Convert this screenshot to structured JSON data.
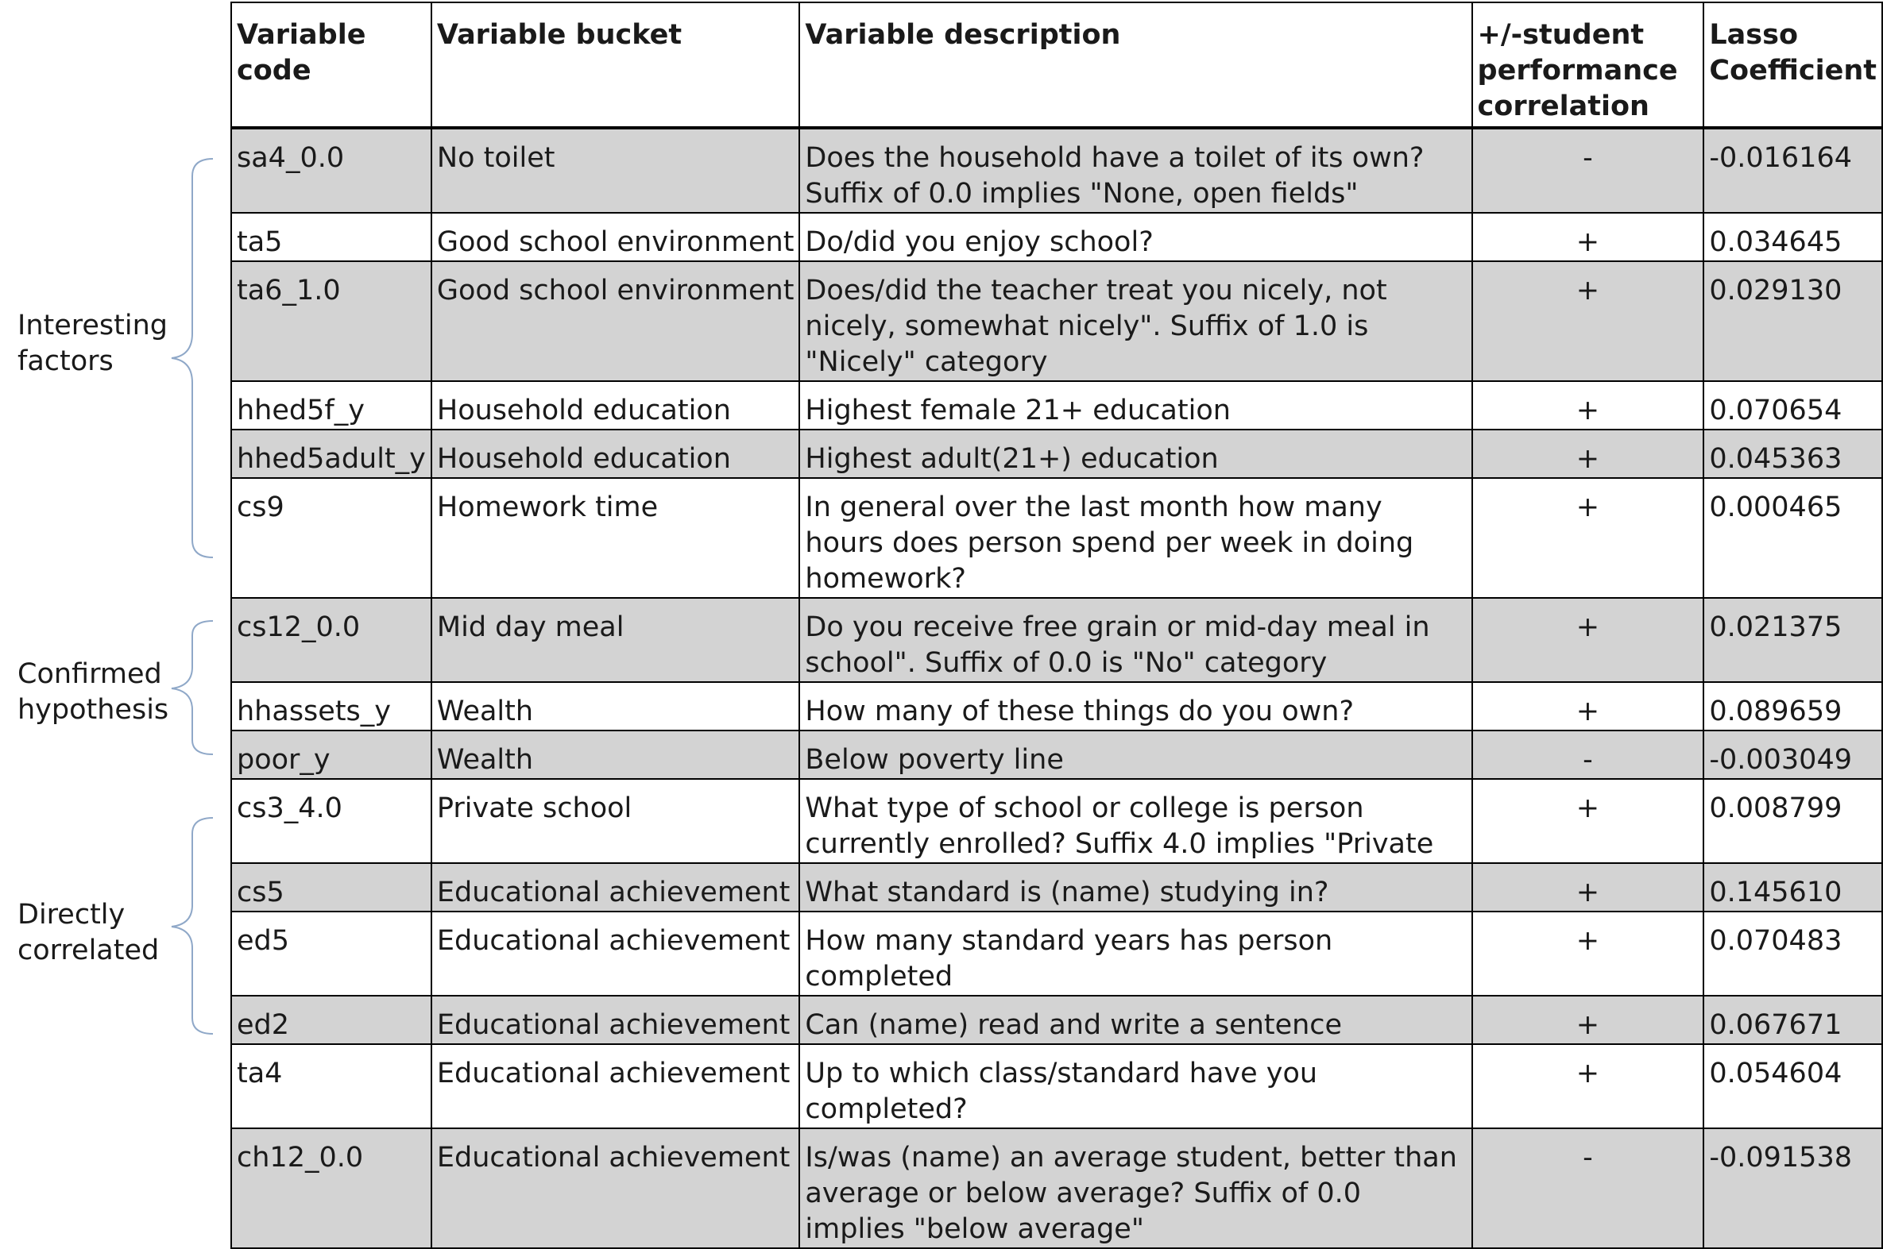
{
  "table": {
    "headers": {
      "code": "Variable code",
      "bucket": "Variable bucket",
      "description": "Variable description",
      "correlation": "+/-student performance correlation",
      "coefficient": "Lasso Coefficient"
    },
    "rows": [
      {
        "code": "sa4_0.0",
        "bucket": "No toilet",
        "description": "Does the household have a toilet of its own? Suffix of 0.0 implies \"None, open fields\"",
        "sign": "-",
        "coef": "-0.016164"
      },
      {
        "code": "ta5",
        "bucket": "Good school environment",
        "description": "Do/did you enjoy school?",
        "sign": "+",
        "coef": "0.034645"
      },
      {
        "code": "ta6_1.0",
        "bucket": "Good school environment",
        "description": "Does/did the teacher treat you nicely, not nicely, somewhat nicely\". Suffix of 1.0 is \"Nicely\" category",
        "sign": "+",
        "coef": "0.029130"
      },
      {
        "code": "hhed5f_y",
        "bucket": "Household education",
        "description": "Highest female 21+ education",
        "sign": "+",
        "coef": "0.070654"
      },
      {
        "code": "hhed5adult_y",
        "bucket": "Household education",
        "description": "Highest adult(21+) education",
        "sign": "+",
        "coef": "0.045363"
      },
      {
        "code": "cs9",
        "bucket": "Homework time",
        "description": "In general over the last month how many hours does person spend per week in doing homework?",
        "sign": "+",
        "coef": "0.000465"
      },
      {
        "code": "cs12_0.0",
        "bucket": "Mid day meal",
        "description": "Do you receive free grain or mid-day meal in school\". Suffix of 0.0 is \"No\" category",
        "sign": "+",
        "coef": "0.021375"
      },
      {
        "code": "hhassets_y",
        "bucket": "Wealth",
        "description": "How many of these things do you own?",
        "sign": "+",
        "coef": "0.089659"
      },
      {
        "code": "poor_y",
        "bucket": "Wealth",
        "description": "Below poverty line",
        "sign": "-",
        "coef": "-0.003049"
      },
      {
        "code": "cs3_4.0",
        "bucket": "Private school",
        "description": "What type of school or college is person currently enrolled? Suffix 4.0 implies \"Private",
        "sign": "+",
        "coef": "0.008799"
      },
      {
        "code": "cs5",
        "bucket": "Educational achievement",
        "description": "What standard is (name) studying in?",
        "sign": "+",
        "coef": "0.145610"
      },
      {
        "code": "ed5",
        "bucket": "Educational achievement",
        "description": "How many standard years has person completed",
        "sign": "+",
        "coef": "0.070483"
      },
      {
        "code": "ed2",
        "bucket": "Educational achievement",
        "description": "Can (name) read and write a sentence",
        "sign": "+",
        "coef": "0.067671"
      },
      {
        "code": "ta4",
        "bucket": "Educational achievement",
        "description": "Up to which class/standard have you completed?",
        "sign": "+",
        "coef": "0.054604"
      },
      {
        "code": "ch12_0.0",
        "bucket": "Educational achievement",
        "description": "Is/was (name) an average student, better than average or below average? Suffix of 0.0 implies \"below average\"",
        "sign": "-",
        "coef": "-0.091538"
      }
    ]
  },
  "groups": [
    {
      "line1": "Interesting",
      "line2": "factors"
    },
    {
      "line1": "Confirmed",
      "line2": "hypothesis"
    },
    {
      "line1": "Directly",
      "line2": "correlated"
    }
  ],
  "colors": {
    "row_shade": "#d3d3d3",
    "brace": "#8fa8c8"
  }
}
